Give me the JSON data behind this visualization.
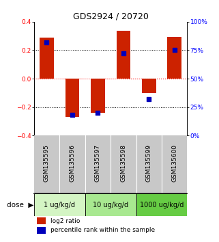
{
  "title": "GDS2924 / 20720",
  "samples": [
    "GSM135595",
    "GSM135596",
    "GSM135597",
    "GSM135598",
    "GSM135599",
    "GSM135600"
  ],
  "log2_ratio": [
    0.29,
    -0.27,
    -0.24,
    0.335,
    -0.1,
    0.295
  ],
  "percentile_rank_pct": [
    82,
    18,
    20,
    72,
    32,
    75
  ],
  "dose_groups": [
    {
      "label": "1 ug/kg/d",
      "color": "#d4f5c4"
    },
    {
      "label": "10 ug/kg/d",
      "color": "#a8e890"
    },
    {
      "label": "1000 ug/kg/d",
      "color": "#66cc44"
    }
  ],
  "ylim": [
    -0.4,
    0.4
  ],
  "yticks": [
    -0.4,
    -0.2,
    0.0,
    0.2,
    0.4
  ],
  "yticks_right": [
    0,
    25,
    50,
    75,
    100
  ],
  "bar_color": "#cc2200",
  "dot_color": "#0000bb",
  "bg_color": "#ffffff",
  "sample_bg": "#c8c8c8",
  "title_fontsize": 9,
  "tick_fontsize": 6.5,
  "label_fontsize": 7.5,
  "legend_fontsize": 6.5
}
